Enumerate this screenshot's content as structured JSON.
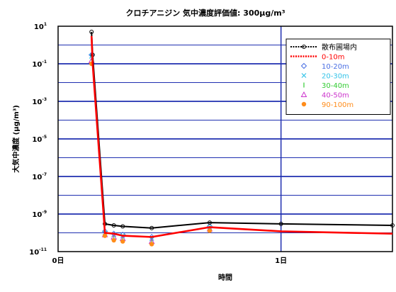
{
  "chart_data": {
    "type": "line",
    "title": "クロチアニジン 気中濃度評価値: 300μg/m³",
    "xlabel": "時間",
    "ylabel": "大気中濃度 (μg/m³)",
    "yscale": "log",
    "ylim": [
      1e-11,
      10
    ],
    "xlim": [
      0,
      1.5
    ],
    "x_ticks": [
      {
        "value": 0,
        "label": "0日"
      },
      {
        "value": 1,
        "label": "1日"
      }
    ],
    "y_ticks": [
      {
        "value": 1e-11,
        "base": "10",
        "exp": "-11"
      },
      {
        "value": 1e-09,
        "base": "10",
        "exp": "-9"
      },
      {
        "value": 1e-07,
        "base": "10",
        "exp": "-7"
      },
      {
        "value": 1e-05,
        "base": "10",
        "exp": "-5"
      },
      {
        "value": 0.001,
        "base": "10",
        "exp": "-3"
      },
      {
        "value": 0.1,
        "base": "10",
        "exp": "-1"
      },
      {
        "value": 10,
        "base": "10",
        "exp": "1"
      }
    ],
    "grid": true,
    "legend_position": "top-right",
    "series": [
      {
        "name": "散布圃場内",
        "color": "#000000",
        "style": "dotted-circle",
        "x": [
          0.15,
          0.155,
          0.21,
          0.25,
          0.29,
          0.42,
          0.68,
          1.0,
          1.5
        ],
        "y": [
          5,
          0.3,
          3e-10,
          2.5e-10,
          2.2e-10,
          1.8e-10,
          3.5e-10,
          3e-10,
          2.5e-10
        ]
      },
      {
        "name": "0-10m",
        "color": "#ff0000",
        "style": "dotted-thick",
        "x": [
          0.15,
          0.155,
          0.21,
          0.25,
          0.29,
          0.42,
          0.68,
          1.0,
          1.5
        ],
        "y": [
          3,
          0.1,
          1e-10,
          9e-11,
          7e-11,
          6e-11,
          2e-10,
          1.2e-10,
          9e-11
        ]
      },
      {
        "name": "10-20m",
        "color": "#4a6fe3",
        "style": "diamond",
        "x": [
          0.15,
          0.21,
          0.25,
          0.29,
          0.42,
          0.68
        ],
        "y": [
          0.3,
          1.2e-10,
          9e-11,
          8e-11,
          6e-11,
          2.2e-10
        ]
      },
      {
        "name": "20-30m",
        "color": "#33c3e8",
        "style": "cross",
        "x": [
          0.15,
          0.21,
          0.25,
          0.29,
          0.42,
          0.68
        ],
        "y": [
          0.25,
          1e-10,
          8e-11,
          7e-11,
          5e-11,
          2e-10
        ]
      },
      {
        "name": "30-40m",
        "color": "#33cc33",
        "style": "bar",
        "x": [
          0.15,
          0.21,
          0.25,
          0.29,
          0.42,
          0.68
        ],
        "y": [
          0.2,
          9e-11,
          7e-11,
          6e-11,
          4e-11,
          1.8e-10
        ]
      },
      {
        "name": "40-50m",
        "color": "#cc33cc",
        "style": "triangle",
        "x": [
          0.15,
          0.21,
          0.25,
          0.29,
          0.42,
          0.68
        ],
        "y": [
          0.15,
          8e-11,
          6e-11,
          5e-11,
          3.5e-11,
          1.6e-10
        ]
      },
      {
        "name": "90-100m",
        "color": "#ff8c1a",
        "style": "dot",
        "x": [
          0.15,
          0.21,
          0.25,
          0.29,
          0.42,
          0.68
        ],
        "y": [
          0.1,
          7e-11,
          4e-11,
          3.5e-11,
          2.5e-11,
          1.3e-10
        ]
      }
    ]
  }
}
